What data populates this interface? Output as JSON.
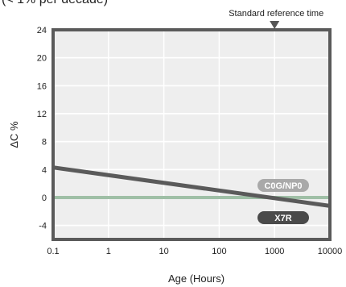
{
  "header": {
    "partial_text": "(< 1% per decade)"
  },
  "chart_data": {
    "type": "line",
    "xlabel": "Age (Hours)",
    "ylabel": "ΔC %",
    "xscale": "log",
    "xlim": [
      0.1,
      10000
    ],
    "ylim": [
      -6,
      24
    ],
    "x_ticks": [
      0.1,
      1,
      10,
      100,
      1000,
      10000
    ],
    "x_tick_labels": [
      "0.1",
      "1",
      "10",
      "100",
      "1000",
      "10000"
    ],
    "y_ticks": [
      24,
      20,
      16,
      12,
      8,
      4,
      0,
      -4
    ],
    "y_tick_labels": [
      "24",
      "20",
      "16",
      "12",
      "8",
      "4",
      "0",
      "-4"
    ],
    "grid": true,
    "series": [
      {
        "name": "C0G/NP0",
        "x": [
          0.1,
          10000
        ],
        "y": [
          0,
          0
        ],
        "color": "#9fbfa6"
      },
      {
        "name": "X7R",
        "x": [
          0.1,
          10000
        ],
        "y": [
          4.3,
          -1.2
        ],
        "color": "#5a5a5a"
      }
    ],
    "annotations": [
      {
        "text": "Standard reference time",
        "x": 1000
      }
    ],
    "colors": {
      "plot_background": "#eeeeee",
      "grid": "#ffffff",
      "axis_border": "#5a5a5a",
      "c0g_label_bg": "#a9a9a9",
      "x7r_label_bg": "#4a4a4a"
    }
  }
}
